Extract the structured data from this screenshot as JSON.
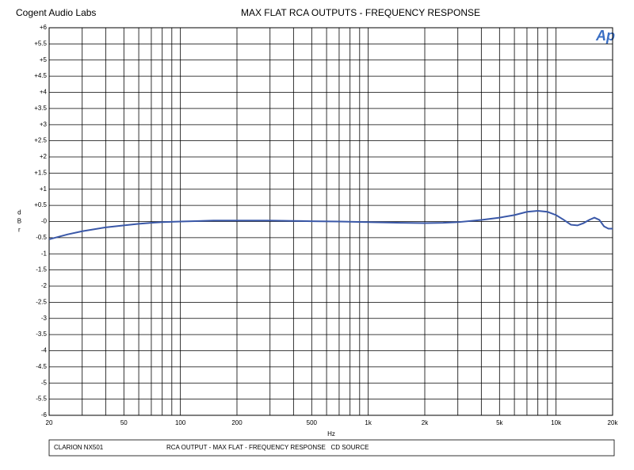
{
  "header": {
    "company": "Cogent Audio Labs",
    "logo": "Ap"
  },
  "footer": {
    "device": "CLARION NX501",
    "description": "RCA OUTPUT - MAX FLAT - FREQUENCY RESPONSE   CD SOURCE"
  },
  "chart_data": {
    "type": "line",
    "title": "MAX FLAT  RCA OUTPUTS  -  FREQUENCY RESPONSE",
    "xlabel": "Hz",
    "ylabel": "dBr",
    "xscale": "log",
    "grid": true,
    "xlim": [
      20,
      20000
    ],
    "ylim": [
      -6,
      6
    ],
    "xticks": [
      20,
      50,
      100,
      200,
      500,
      {
        "value": 1000,
        "label": "1k"
      },
      {
        "value": 2000,
        "label": "2k"
      },
      {
        "value": 5000,
        "label": "5k"
      },
      {
        "value": 10000,
        "label": "10k"
      },
      {
        "value": 20000,
        "label": "20k"
      }
    ],
    "xminor": [
      30,
      40,
      60,
      70,
      80,
      90,
      300,
      400,
      600,
      700,
      800,
      900,
      3000,
      4000,
      6000,
      7000,
      8000,
      9000
    ],
    "yticks": [
      {
        "value": 6,
        "label": "+6"
      },
      {
        "value": 5.5,
        "label": "+5.5"
      },
      {
        "value": 5,
        "label": "+5"
      },
      {
        "value": 4.5,
        "label": "+4.5"
      },
      {
        "value": 4,
        "label": "+4"
      },
      {
        "value": 3.5,
        "label": "+3.5"
      },
      {
        "value": 3,
        "label": "+3"
      },
      {
        "value": 2.5,
        "label": "+2.5"
      },
      {
        "value": 2,
        "label": "+2"
      },
      {
        "value": 1.5,
        "label": "+1.5"
      },
      {
        "value": 1,
        "label": "+1"
      },
      {
        "value": 0.5,
        "label": "+0.5"
      },
      {
        "value": 0,
        "label": "-0"
      },
      -0.5,
      -1,
      -1.5,
      -2,
      -2.5,
      -3,
      -3.5,
      -4,
      -4.5,
      -5,
      -5.5,
      -6
    ],
    "series": [
      {
        "color": "#3a58a8",
        "x": [
          20,
          25,
          30,
          40,
          50,
          60,
          70,
          80,
          100,
          150,
          200,
          300,
          400,
          500,
          700,
          1000,
          1500,
          2000,
          2500,
          3000,
          4000,
          5000,
          6000,
          7000,
          8000,
          9000,
          10000,
          11000,
          12000,
          13000,
          14000,
          15000,
          16000,
          17000,
          18000,
          19000,
          20000
        ],
        "values": [
          -0.55,
          -0.4,
          -0.3,
          -0.18,
          -0.12,
          -0.07,
          -0.04,
          -0.02,
          0,
          0.03,
          0.03,
          0.03,
          0.02,
          0.01,
          0,
          -0.02,
          -0.04,
          -0.05,
          -0.04,
          -0.02,
          0.05,
          0.12,
          0.2,
          0.3,
          0.33,
          0.3,
          0.2,
          0.05,
          -0.1,
          -0.12,
          -0.05,
          0.05,
          0.12,
          0.05,
          -0.15,
          -0.22,
          -0.22
        ]
      }
    ]
  }
}
